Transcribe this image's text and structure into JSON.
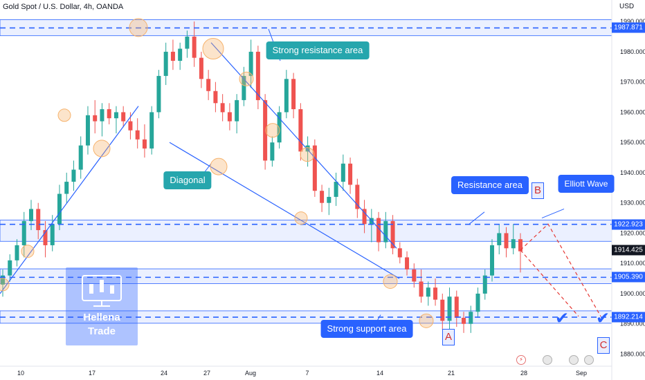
{
  "symbol": "Gold Spot / U.S. Dollar, 4h, OANDA",
  "currency": "USD",
  "watermark": {
    "line1": "Hellena",
    "line2": "Trade"
  },
  "annotations": {
    "strong_resistance": "Strong resistance area",
    "diagonal": "Diagonal",
    "resistance_area": "Resistance area",
    "elliott_wave": "Elliott Wave",
    "strong_support": "Strong support area",
    "wave_a": "A",
    "wave_b": "B",
    "wave_c": "C"
  },
  "icons": {
    "economic_event": "flag-icon",
    "earnings": "lightning-icon",
    "target": "checkmark-icon"
  },
  "colors": {
    "up": "#26a69a",
    "down": "#ef5350",
    "level_line": "#2962ff",
    "zone_fill": "#dbe4ff",
    "highlight_circle": "#f6b26b",
    "projection": "#e53935"
  },
  "chart_data": {
    "type": "candlestick",
    "timeframe": "4h",
    "x_ticks": [
      "10",
      "17",
      "24",
      "27",
      "Aug",
      "7",
      "14",
      "21",
      "28",
      "Sep"
    ],
    "y_ticks": [
      1880,
      1890,
      1900,
      1910,
      1920,
      1930,
      1940,
      1950,
      1960,
      1970,
      1980,
      1990
    ],
    "ylim": [
      1876,
      1993
    ],
    "last_price": 1914.425,
    "levels": [
      {
        "price": 1987.871,
        "label": "1987.871"
      },
      {
        "price": 1922.923,
        "label": "1922.923"
      },
      {
        "price": 1905.39,
        "label": "1905.390"
      },
      {
        "price": 1892.214,
        "label": "1892.214"
      }
    ],
    "candles": [
      [
        1903,
        1908,
        1899,
        1906
      ],
      [
        1906,
        1913,
        1904,
        1911
      ],
      [
        1911,
        1918,
        1909,
        1916
      ],
      [
        1916,
        1927,
        1912,
        1924
      ],
      [
        1924,
        1931,
        1921,
        1928
      ],
      [
        1928,
        1930,
        1918,
        1921
      ],
      [
        1921,
        1924,
        1912,
        1916
      ],
      [
        1916,
        1926,
        1914,
        1923
      ],
      [
        1923,
        1936,
        1921,
        1933
      ],
      [
        1933,
        1940,
        1930,
        1937
      ],
      [
        1937,
        1944,
        1934,
        1941
      ],
      [
        1941,
        1952,
        1938,
        1949
      ],
      [
        1949,
        1962,
        1946,
        1959
      ],
      [
        1959,
        1964,
        1953,
        1957
      ],
      [
        1957,
        1963,
        1952,
        1961
      ],
      [
        1961,
        1963,
        1956,
        1958
      ],
      [
        1958,
        1962,
        1953,
        1960
      ],
      [
        1960,
        1962,
        1955,
        1957
      ],
      [
        1957,
        1960,
        1951,
        1954
      ],
      [
        1954,
        1958,
        1948,
        1951
      ],
      [
        1951,
        1956,
        1945,
        1948
      ],
      [
        1948,
        1962,
        1946,
        1960
      ],
      [
        1960,
        1974,
        1958,
        1972
      ],
      [
        1972,
        1983,
        1969,
        1980
      ],
      [
        1980,
        1984,
        1974,
        1977
      ],
      [
        1977,
        1983,
        1974,
        1981
      ],
      [
        1981,
        1987,
        1978,
        1985
      ],
      [
        1985,
        1990,
        1975,
        1978
      ],
      [
        1978,
        1980,
        1968,
        1971
      ],
      [
        1971,
        1974,
        1964,
        1967
      ],
      [
        1967,
        1970,
        1960,
        1963
      ],
      [
        1963,
        1966,
        1957,
        1960
      ],
      [
        1960,
        1963,
        1954,
        1957
      ],
      [
        1957,
        1966,
        1953,
        1964
      ],
      [
        1964,
        1975,
        1962,
        1972
      ],
      [
        1972,
        1984,
        1968,
        1980
      ],
      [
        1980,
        1982,
        1961,
        1964
      ],
      [
        1964,
        1966,
        1941,
        1944
      ],
      [
        1944,
        1952,
        1942,
        1950
      ],
      [
        1950,
        1962,
        1948,
        1960
      ],
      [
        1960,
        1974,
        1958,
        1971
      ],
      [
        1971,
        1973,
        1958,
        1961
      ],
      [
        1961,
        1963,
        1944,
        1947
      ],
      [
        1947,
        1952,
        1942,
        1949
      ],
      [
        1949,
        1951,
        1932,
        1934
      ],
      [
        1934,
        1936,
        1927,
        1930
      ],
      [
        1930,
        1935,
        1926,
        1932
      ],
      [
        1932,
        1940,
        1929,
        1937
      ],
      [
        1937,
        1946,
        1934,
        1943
      ],
      [
        1943,
        1945,
        1933,
        1936
      ],
      [
        1936,
        1938,
        1925,
        1928
      ],
      [
        1928,
        1931,
        1920,
        1923
      ],
      [
        1923,
        1928,
        1917,
        1925
      ],
      [
        1925,
        1927,
        1914,
        1917
      ],
      [
        1917,
        1927,
        1915,
        1924
      ],
      [
        1924,
        1926,
        1913,
        1915
      ],
      [
        1915,
        1917,
        1910,
        1912
      ],
      [
        1912,
        1914,
        1906,
        1908
      ],
      [
        1908,
        1910,
        1902,
        1904
      ],
      [
        1904,
        1908,
        1897,
        1899
      ],
      [
        1899,
        1904,
        1896,
        1902
      ],
      [
        1902,
        1905,
        1896,
        1898
      ],
      [
        1898,
        1900,
        1888,
        1891
      ],
      [
        1891,
        1902,
        1888,
        1899
      ],
      [
        1899,
        1901,
        1889,
        1892
      ],
      [
        1892,
        1894,
        1887,
        1890
      ],
      [
        1890,
        1896,
        1887,
        1894
      ],
      [
        1894,
        1902,
        1892,
        1900
      ],
      [
        1900,
        1908,
        1898,
        1906
      ],
      [
        1906,
        1918,
        1904,
        1916
      ],
      [
        1916,
        1923,
        1913,
        1920
      ],
      [
        1920,
        1922,
        1912,
        1915
      ],
      [
        1915,
        1923,
        1913,
        1918
      ],
      [
        1918,
        1920,
        1907,
        1914
      ]
    ],
    "projection_path": [
      1914.4,
      1923,
      1892.5
    ]
  }
}
